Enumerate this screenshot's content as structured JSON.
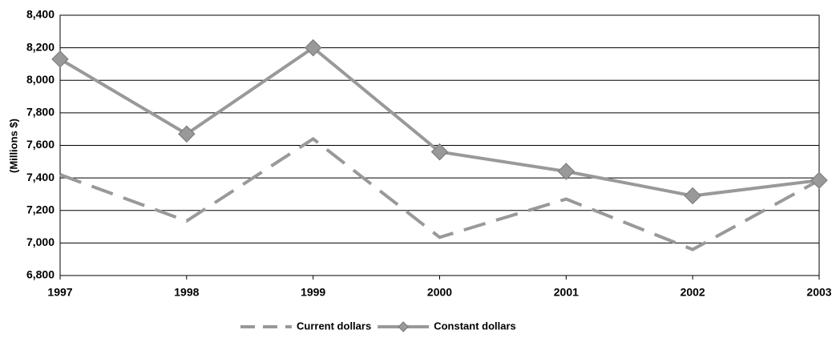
{
  "chart_data": {
    "type": "line",
    "y_label": "(Millions $)",
    "categories": [
      "1997",
      "1998",
      "1999",
      "2000",
      "2001",
      "2002",
      "2003"
    ],
    "series": [
      {
        "name": "Current dollars",
        "color": "#999999",
        "dashed": true,
        "marker": "none",
        "values": [
          7420,
          7135,
          7640,
          7035,
          7270,
          6960,
          7385
        ]
      },
      {
        "name": "Constant dollars",
        "color": "#999999",
        "dashed": false,
        "marker": "diamond",
        "values": [
          8130,
          7670,
          8200,
          7560,
          7440,
          7290,
          7385
        ]
      }
    ],
    "ylim": [
      6800,
      8400
    ],
    "yticks": [
      {
        "value": 6800,
        "label": "6,800"
      },
      {
        "value": 7000,
        "label": "7,000"
      },
      {
        "value": 7200,
        "label": "7,200"
      },
      {
        "value": 7400,
        "label": "7,400"
      },
      {
        "value": 7600,
        "label": "7,600"
      },
      {
        "value": 7800,
        "label": "7,800"
      },
      {
        "value": 8000,
        "label": "8,000"
      },
      {
        "value": 8200,
        "label": "8,200"
      },
      {
        "value": 8400,
        "label": "8,400"
      }
    ],
    "grid": true,
    "legend": "bottom"
  }
}
